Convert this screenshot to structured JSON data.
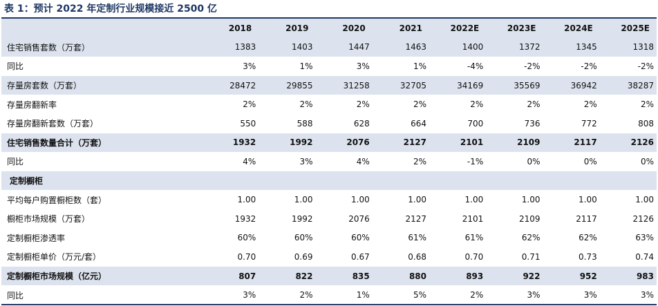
{
  "title": "表 1：预计 2022 年定制行业规模接近 2500 亿",
  "header": [
    "2018",
    "2019",
    "2020",
    "2021",
    "2022E",
    "2023E",
    "2024E",
    "2025E"
  ],
  "rows": [
    {
      "label": "住宅销售套数（万套）",
      "values": [
        "1383",
        "1403",
        "1447",
        "1463",
        "1400",
        "1372",
        "1345",
        "1318"
      ],
      "shade": true,
      "bold": false
    },
    {
      "label": "同比",
      "values": [
        "3%",
        "1%",
        "3%",
        "1%",
        "-4%",
        "-2%",
        "-2%",
        "-2%"
      ],
      "shade": false,
      "bold": false
    },
    {
      "label": "存量房套数（万套）",
      "values": [
        "28472",
        "29855",
        "31258",
        "32705",
        "34169",
        "35569",
        "36942",
        "38287"
      ],
      "shade": true,
      "bold": false
    },
    {
      "label": "存量房翻新率",
      "values": [
        "2%",
        "2%",
        "2%",
        "2%",
        "2%",
        "2%",
        "2%",
        "2%"
      ],
      "shade": false,
      "bold": false
    },
    {
      "label": "存量房翻新套数（万套）",
      "values": [
        "550",
        "588",
        "628",
        "664",
        "700",
        "736",
        "772",
        "808"
      ],
      "shade": false,
      "bold": false
    },
    {
      "label": "住宅销售数量合计（万套）",
      "values": [
        "1932",
        "1992",
        "2076",
        "2127",
        "2101",
        "2109",
        "2117",
        "2126"
      ],
      "shade": true,
      "bold": true
    },
    {
      "label": "同比",
      "values": [
        "4%",
        "3%",
        "4%",
        "2%",
        "-1%",
        "0%",
        "0%",
        "0%"
      ],
      "shade": false,
      "bold": false
    },
    {
      "label": "定制橱柜",
      "values": [
        "",
        "",
        "",
        "",
        "",
        "",
        "",
        ""
      ],
      "shade": true,
      "bold": true,
      "section": true
    },
    {
      "label": "平均每户购置橱柜数（套）",
      "values": [
        "1.00",
        "1.00",
        "1.00",
        "1.00",
        "1.00",
        "1.00",
        "1.00",
        "1.00"
      ],
      "shade": false,
      "bold": false
    },
    {
      "label": "橱柜市场规模（万套）",
      "values": [
        "1932",
        "1992",
        "2076",
        "2127",
        "2101",
        "2109",
        "2117",
        "2126"
      ],
      "shade": false,
      "bold": false
    },
    {
      "label": "定制橱柜渗透率",
      "values": [
        "60%",
        "60%",
        "60%",
        "61%",
        "61%",
        "62%",
        "62%",
        "63%"
      ],
      "shade": false,
      "bold": false
    },
    {
      "label": "定制橱柜单价（万元/套）",
      "values": [
        "0.70",
        "0.69",
        "0.67",
        "0.68",
        "0.70",
        "0.71",
        "0.73",
        "0.74"
      ],
      "shade": false,
      "bold": false
    },
    {
      "label": "定制橱柜市场规模（亿元）",
      "values": [
        "807",
        "822",
        "835",
        "880",
        "893",
        "922",
        "952",
        "983"
      ],
      "shade": true,
      "bold": true
    },
    {
      "label": "同比",
      "values": [
        "3%",
        "2%",
        "1%",
        "5%",
        "2%",
        "3%",
        "3%",
        "3%"
      ],
      "shade": false,
      "bold": false
    }
  ]
}
